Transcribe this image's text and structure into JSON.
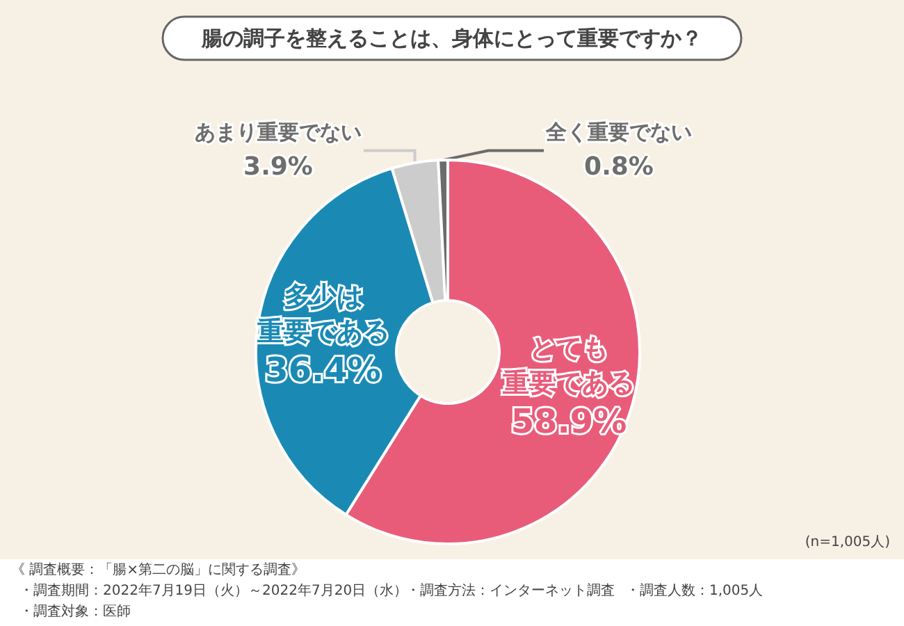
{
  "chart_data": {
    "type": "donut",
    "title": "腸の調子を整えることは、身体にとって重要ですか？",
    "categories": [
      "とても重要である",
      "多少は重要である",
      "あまり重要でない",
      "全く重要でない"
    ],
    "values": [
      58.9,
      36.4,
      3.9,
      0.8
    ],
    "value_labels": [
      "58.9%",
      "36.4%",
      "3.9%",
      "0.8%"
    ],
    "colors": [
      "#e85c7a",
      "#1a8ab5",
      "#cccccc",
      "#6b6b6b"
    ],
    "legend": false,
    "annotations": [
      "(n=1,005人)",
      "《 調査概要：「腸×第二の脳」に関する調査》",
      "・調査期間：2022年7月19日（火）～2022年7月20日（水）",
      "・調査方法：インターネット調査",
      "・調査人数：1,005人",
      "・調査対象：医師"
    ]
  }
}
